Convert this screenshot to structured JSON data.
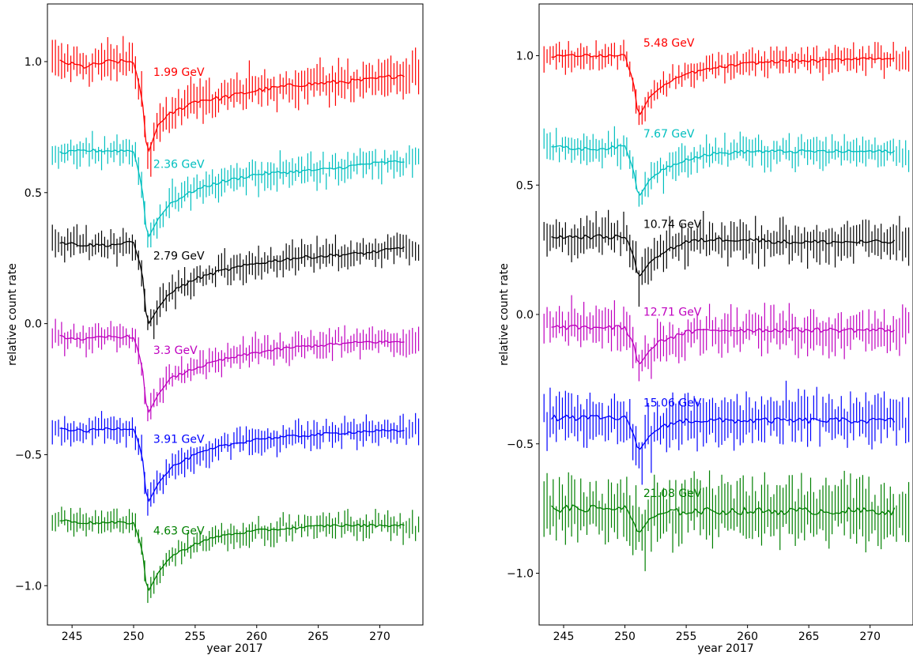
{
  "chart_data": [
    {
      "type": "line",
      "panel": "left",
      "xlabel": "year 2017",
      "ylabel": "relative count rate",
      "xlim": [
        243,
        273.5
      ],
      "ylim": [
        -1.15,
        1.22
      ],
      "xticks": [
        245,
        250,
        255,
        260,
        265,
        270
      ],
      "yticks": [
        -1.0,
        -0.5,
        0.0,
        0.5,
        1.0
      ],
      "ytick_labels": [
        "−1.0",
        "−0.5",
        "0.0",
        "0.5",
        "1.0"
      ],
      "grid": false,
      "series": [
        {
          "name": "1.99 GeV",
          "color": "#ff0000",
          "base": 1.0,
          "min": 0.64,
          "noise": 0.065,
          "recovery": 0.95,
          "tau": 7.0,
          "label_pos": [
            251.6,
            0.96
          ],
          "model_x": [
            244,
            246,
            248,
            250,
            250.7,
            251.1,
            252,
            253,
            255,
            257,
            260,
            263,
            266,
            269,
            272
          ],
          "model_y": [
            1.0,
            0.98,
            1.0,
            1.0,
            0.86,
            0.64,
            0.76,
            0.8,
            0.85,
            0.86,
            0.89,
            0.91,
            0.92,
            0.93,
            0.95
          ]
        },
        {
          "name": "2.36 GeV",
          "color": "#00bfbf",
          "base": 0.65,
          "min": 0.32,
          "noise": 0.05,
          "recovery": 0.62,
          "tau": 6.0,
          "label_pos": [
            251.6,
            0.61
          ],
          "model_x": [
            244,
            246,
            248,
            250,
            250.7,
            251.1,
            252,
            253,
            255,
            257,
            260,
            263,
            266,
            269,
            272
          ],
          "model_y": [
            0.65,
            0.66,
            0.66,
            0.66,
            0.52,
            0.32,
            0.4,
            0.46,
            0.51,
            0.54,
            0.57,
            0.58,
            0.59,
            0.61,
            0.62
          ]
        },
        {
          "name": "2.79 GeV",
          "color": "#000000",
          "base": 0.3,
          "min": -0.01,
          "noise": 0.05,
          "recovery": 0.29,
          "tau": 6.0,
          "label_pos": [
            251.6,
            0.26
          ],
          "model_x": [
            244,
            246,
            248,
            250,
            250.7,
            251.1,
            252,
            253,
            255,
            257,
            260,
            263,
            266,
            269,
            272
          ],
          "model_y": [
            0.31,
            0.3,
            0.3,
            0.31,
            0.2,
            -0.01,
            0.06,
            0.12,
            0.17,
            0.2,
            0.23,
            0.25,
            0.26,
            0.27,
            0.29
          ]
        },
        {
          "name": "3.3 GeV",
          "color": "#bf00bf",
          "base": -0.05,
          "min": -0.35,
          "noise": 0.045,
          "recovery": -0.07,
          "tau": 6.0,
          "label_pos": [
            251.6,
            -0.1
          ],
          "model_x": [
            244,
            246,
            248,
            250,
            250.7,
            251.1,
            252,
            253,
            255,
            257,
            260,
            263,
            266,
            269,
            272
          ],
          "model_y": [
            -0.05,
            -0.06,
            -0.05,
            -0.05,
            -0.16,
            -0.35,
            -0.27,
            -0.21,
            -0.17,
            -0.14,
            -0.11,
            -0.09,
            -0.08,
            -0.07,
            -0.07
          ]
        },
        {
          "name": "3.91 GeV",
          "color": "#0000ff",
          "base": -0.4,
          "min": -0.69,
          "noise": 0.045,
          "recovery": -0.41,
          "tau": 6.0,
          "label_pos": [
            251.6,
            -0.44
          ],
          "model_x": [
            244,
            246,
            248,
            250,
            250.7,
            251.1,
            252,
            253,
            255,
            257,
            260,
            263,
            266,
            269,
            272
          ],
          "model_y": [
            -0.4,
            -0.41,
            -0.4,
            -0.4,
            -0.5,
            -0.69,
            -0.61,
            -0.55,
            -0.5,
            -0.47,
            -0.44,
            -0.43,
            -0.42,
            -0.41,
            -0.41
          ]
        },
        {
          "name": "4.63 GeV",
          "color": "#008000",
          "base": -0.75,
          "min": -1.03,
          "noise": 0.04,
          "recovery": -0.77,
          "tau": 6.0,
          "label_pos": [
            251.6,
            -0.79
          ],
          "model_x": [
            244,
            246,
            248,
            250,
            250.7,
            251.1,
            252,
            253,
            255,
            257,
            260,
            263,
            266,
            269,
            272
          ],
          "model_y": [
            -0.75,
            -0.76,
            -0.76,
            -0.76,
            -0.86,
            -1.03,
            -0.95,
            -0.89,
            -0.84,
            -0.81,
            -0.79,
            -0.78,
            -0.77,
            -0.77,
            -0.77
          ]
        }
      ]
    },
    {
      "type": "line",
      "panel": "right",
      "xlabel": "year 2017",
      "ylabel": "relative count rate",
      "xlim": [
        243,
        273.5
      ],
      "ylim": [
        -1.2,
        1.2
      ],
      "xticks": [
        245,
        250,
        255,
        260,
        265,
        270
      ],
      "yticks": [
        -1.0,
        -0.5,
        0.0,
        0.5,
        1.0
      ],
      "ytick_labels": [
        "−1.0",
        "−0.5",
        "0.0",
        "0.5",
        "1.0"
      ],
      "grid": false,
      "series": [
        {
          "name": "5.48 GeV",
          "color": "#ff0000",
          "base": 1.0,
          "min": 0.76,
          "noise": 0.045,
          "recovery": 0.99,
          "tau": 4.0,
          "label_pos": [
            251.5,
            1.05
          ],
          "model_x": [
            244,
            246,
            248,
            250,
            250.7,
            251.1,
            252,
            253,
            255,
            257,
            260,
            263,
            266,
            269,
            272
          ],
          "model_y": [
            1.0,
            1.0,
            1.0,
            1.0,
            0.9,
            0.76,
            0.84,
            0.88,
            0.93,
            0.95,
            0.97,
            0.98,
            0.98,
            0.99,
            0.99
          ]
        },
        {
          "name": "7.67 GeV",
          "color": "#00bfbf",
          "base": 0.65,
          "min": 0.45,
          "noise": 0.05,
          "recovery": 0.63,
          "tau": 4.0,
          "label_pos": [
            251.5,
            0.7
          ],
          "model_x": [
            244,
            246,
            248,
            250,
            250.7,
            251.1,
            252,
            253,
            255,
            257,
            260,
            263,
            266,
            269,
            272
          ],
          "model_y": [
            0.65,
            0.64,
            0.64,
            0.65,
            0.56,
            0.45,
            0.52,
            0.56,
            0.6,
            0.62,
            0.63,
            0.63,
            0.63,
            0.63,
            0.63
          ]
        },
        {
          "name": "10.74 GeV",
          "color": "#000000",
          "base": 0.3,
          "min": 0.14,
          "noise": 0.065,
          "recovery": 0.28,
          "tau": 3.0,
          "label_pos": [
            251.5,
            0.35
          ],
          "model_x": [
            244,
            246,
            248,
            250,
            250.7,
            251.1,
            252,
            253,
            255,
            257,
            260,
            263,
            266,
            269,
            272
          ],
          "model_y": [
            0.3,
            0.3,
            0.3,
            0.3,
            0.23,
            0.14,
            0.2,
            0.24,
            0.28,
            0.29,
            0.29,
            0.28,
            0.28,
            0.28,
            0.28
          ]
        },
        {
          "name": "12.71 GeV",
          "color": "#bf00bf",
          "base": -0.05,
          "min": -0.2,
          "noise": 0.07,
          "recovery": -0.06,
          "tau": 3.0,
          "label_pos": [
            251.5,
            0.01
          ],
          "model_x": [
            244,
            246,
            248,
            250,
            250.7,
            251.1,
            252,
            253,
            255,
            257,
            260,
            263,
            266,
            269,
            272
          ],
          "model_y": [
            -0.05,
            -0.05,
            -0.05,
            -0.05,
            -0.11,
            -0.2,
            -0.14,
            -0.1,
            -0.07,
            -0.06,
            -0.06,
            -0.06,
            -0.06,
            -0.06,
            -0.06
          ]
        },
        {
          "name": "15.06 GeV",
          "color": "#0000ff",
          "base": -0.4,
          "min": -0.53,
          "noise": 0.085,
          "recovery": -0.41,
          "tau": 3.0,
          "label_pos": [
            251.5,
            -0.34
          ],
          "model_x": [
            244,
            246,
            248,
            250,
            250.7,
            251.1,
            252,
            253,
            255,
            257,
            260,
            263,
            266,
            269,
            272
          ],
          "model_y": [
            -0.4,
            -0.4,
            -0.4,
            -0.4,
            -0.46,
            -0.53,
            -0.47,
            -0.43,
            -0.41,
            -0.41,
            -0.41,
            -0.41,
            -0.41,
            -0.41,
            -0.41
          ]
        },
        {
          "name": "21.08 GeV",
          "color": "#008000",
          "base": -0.75,
          "min": -0.85,
          "noise": 0.11,
          "recovery": -0.76,
          "tau": 3.0,
          "label_pos": [
            251.5,
            -0.69
          ],
          "model_x": [
            244,
            246,
            248,
            250,
            250.7,
            251.1,
            252,
            253,
            255,
            257,
            260,
            263,
            266,
            269,
            272
          ],
          "model_y": [
            -0.75,
            -0.75,
            -0.75,
            -0.75,
            -0.8,
            -0.85,
            -0.79,
            -0.77,
            -0.76,
            -0.76,
            -0.76,
            -0.76,
            -0.76,
            -0.76,
            -0.76
          ]
        }
      ]
    }
  ]
}
